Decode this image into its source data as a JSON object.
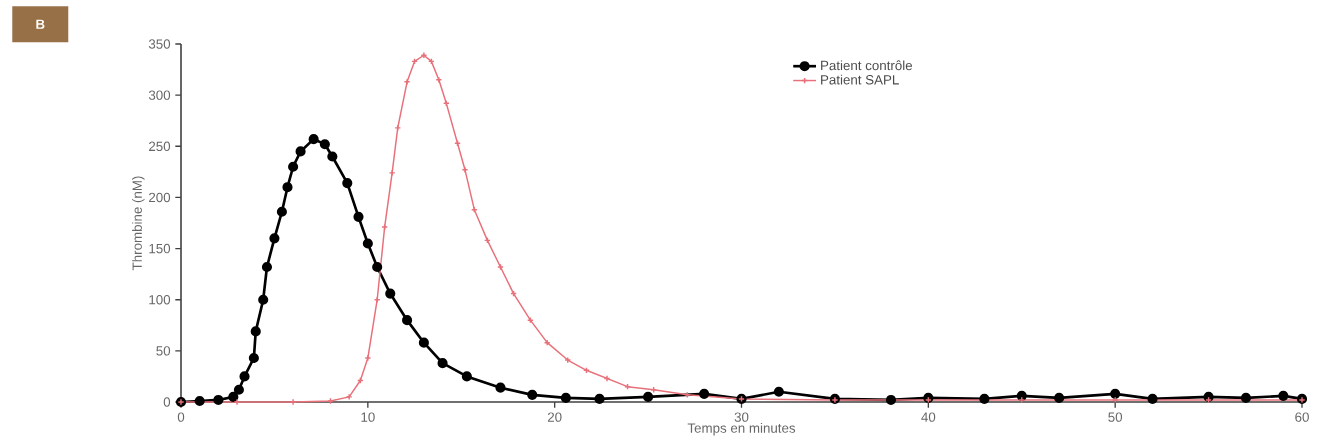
{
  "chart_data": {
    "type": "line",
    "xlabel": "Temps en minutes",
    "ylabel": "Thrombine (nM)",
    "xlim": [
      0,
      60
    ],
    "xticks": [
      0,
      10,
      20,
      30,
      40,
      50,
      60
    ],
    "ylim": [
      0,
      350
    ],
    "yticks": [
      0,
      50,
      100,
      150,
      200,
      250,
      300,
      350
    ],
    "grid": false,
    "legend": "top",
    "line_style": "solid",
    "annotations": [
      "B"
    ],
    "series": [
      {
        "name": "Patient contrôle",
        "color": "#000000",
        "marker": "circle",
        "x": [
          0,
          1,
          2,
          2.8,
          3.1,
          3.4,
          3.9,
          4.0,
          4.4,
          4.6,
          5.0,
          5.4,
          5.7,
          6.0,
          6.4,
          7.1,
          7.7,
          8.1,
          8.9,
          9.5,
          10.0,
          10.5,
          11.2,
          12.1,
          13.0,
          14.0,
          15.3,
          17.1,
          18.8,
          20.6,
          22.4,
          25,
          28,
          30,
          32,
          35,
          38,
          40,
          43,
          45,
          47,
          50,
          52,
          55,
          57,
          59,
          60
        ],
        "values": [
          0,
          1,
          2,
          5,
          12,
          25,
          43,
          69,
          100,
          132,
          160,
          186,
          210,
          230,
          245,
          257,
          252,
          240,
          214,
          181,
          155,
          132,
          106,
          80,
          58,
          38,
          25,
          14,
          7,
          4,
          3,
          5,
          8,
          3,
          10,
          3,
          2,
          4,
          3,
          6,
          4,
          8,
          3,
          5,
          4,
          6,
          3
        ]
      },
      {
        "name": "Patient SAPL",
        "color": "#e8707a",
        "marker": "cross",
        "x": [
          0,
          3,
          6,
          8,
          9.0,
          9.6,
          10.0,
          10.5,
          10.9,
          11.3,
          11.6,
          12.1,
          12.5,
          13.0,
          13.4,
          13.8,
          14.2,
          14.8,
          15.2,
          15.7,
          16.4,
          17.1,
          17.8,
          18.7,
          19.6,
          20.7,
          21.7,
          22.8,
          23.9,
          25.3,
          27.1,
          30,
          35,
          40,
          45,
          50,
          55,
          60
        ],
        "values": [
          0,
          0,
          0,
          1,
          5,
          21,
          43,
          100,
          171,
          224,
          268,
          313,
          333,
          339,
          333,
          315,
          292,
          253,
          227,
          188,
          158,
          132,
          106,
          80,
          58,
          41,
          31,
          23,
          15,
          12,
          7,
          3,
          2,
          2,
          2,
          2,
          2,
          2
        ]
      }
    ]
  }
}
